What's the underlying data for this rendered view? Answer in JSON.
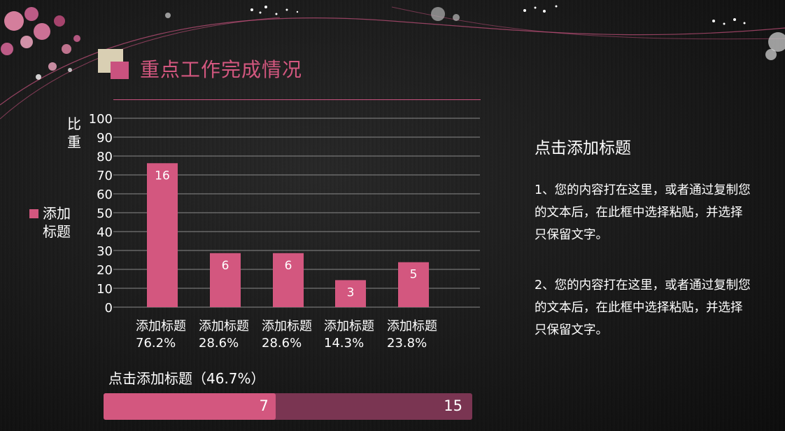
{
  "slide": {
    "title": "重点工作完成情况",
    "y_axis_label": "比重",
    "legend_label": "添加标题"
  },
  "chart_data": {
    "type": "bar",
    "categories": [
      "添加标题\n76.2%",
      "添加标题\n28.6%",
      "添加标题\n28.6%",
      "添加标题\n14.3%",
      "添加标题\n23.8%"
    ],
    "category_names": [
      "添加标题",
      "添加标题",
      "添加标题",
      "添加标题",
      "添加标题"
    ],
    "category_percents": [
      "76.2%",
      "28.6%",
      "28.6%",
      "14.3%",
      "23.8%"
    ],
    "series": [
      {
        "name": "添加标题",
        "values": [
          76.2,
          28.6,
          28.6,
          14.3,
          23.8
        ]
      }
    ],
    "data_labels": [
      "16",
      "6",
      "6",
      "3",
      "5"
    ],
    "ylabel": "比重",
    "ylim": [
      0,
      100
    ],
    "yticks": [
      0,
      10,
      20,
      30,
      40,
      50,
      60,
      70,
      80,
      90,
      100
    ],
    "grid": true,
    "legend_position": "left",
    "bar_color": "#d3577f"
  },
  "progress": {
    "label": "点击添加标题（46.7%）",
    "value": 7,
    "total": 15,
    "value_text": "7",
    "total_text": "15",
    "fill_color": "#d3577f",
    "track_color": "#7a3552"
  },
  "side": {
    "title": "点击添加标题",
    "para1": "1、您的内容打在这里，或者通过复制您的文本后，在此框中选择粘贴，并选择只保留文字。",
    "para2": "2、您的内容打在这里，或者通过复制您的文本后，在此框中选择粘贴，并选择只保留文字。"
  }
}
